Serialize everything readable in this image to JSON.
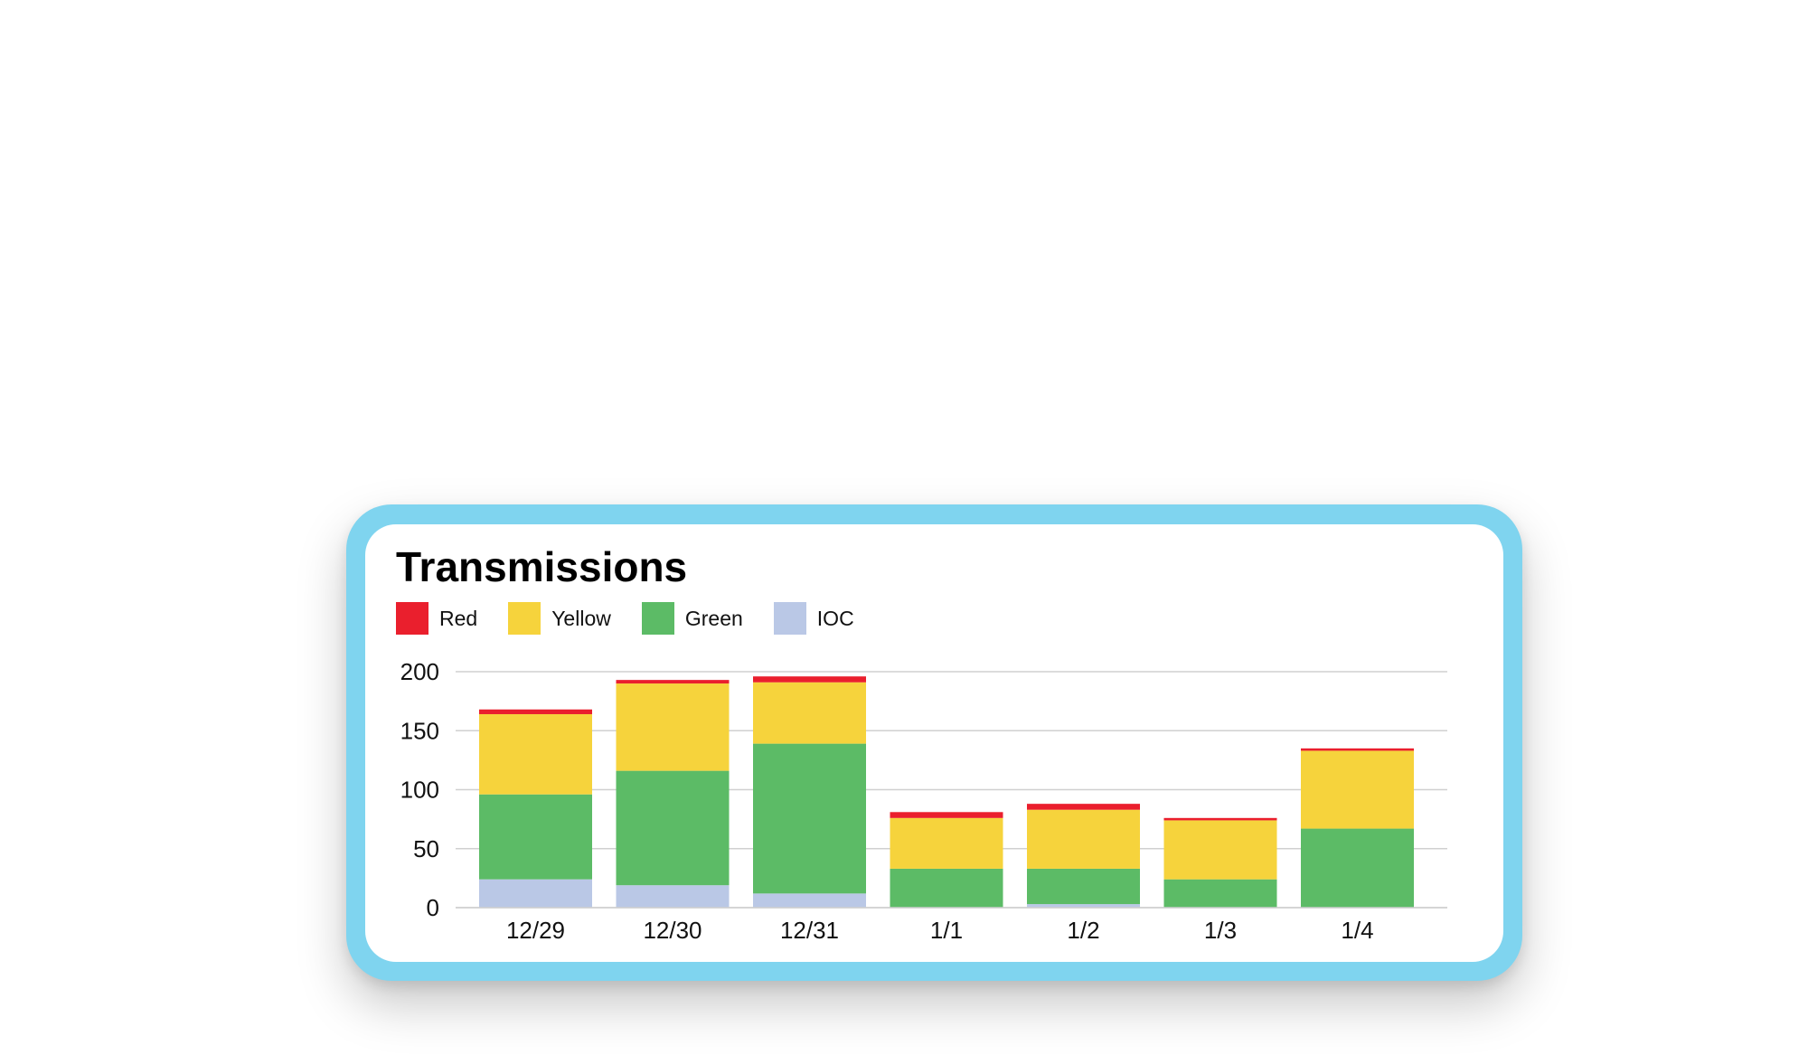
{
  "chart_data": {
    "type": "bar",
    "stacked": true,
    "title": "Transmissions",
    "categories": [
      "12/29",
      "12/30",
      "12/31",
      "1/1",
      "1/2",
      "1/3",
      "1/4"
    ],
    "series": [
      {
        "name": "IOC",
        "color": "#bac8e6",
        "values": [
          24,
          19,
          12,
          0,
          3,
          0,
          0
        ]
      },
      {
        "name": "Green",
        "color": "#5cbb66",
        "values": [
          72,
          97,
          127,
          33,
          30,
          24,
          67
        ]
      },
      {
        "name": "Yellow",
        "color": "#f6d33c",
        "values": [
          68,
          74,
          52,
          43,
          50,
          50,
          66
        ]
      },
      {
        "name": "Red",
        "color": "#ea1f2d",
        "values": [
          4,
          3,
          5,
          5,
          5,
          2,
          2
        ]
      }
    ],
    "legend_order": [
      "Red",
      "Yellow",
      "Green",
      "IOC"
    ],
    "ylim": [
      0,
      200
    ],
    "yticks": [
      0,
      50,
      100,
      150,
      200
    ],
    "grid": true,
    "legend_position": "top-left",
    "xlabel": "",
    "ylabel": ""
  }
}
